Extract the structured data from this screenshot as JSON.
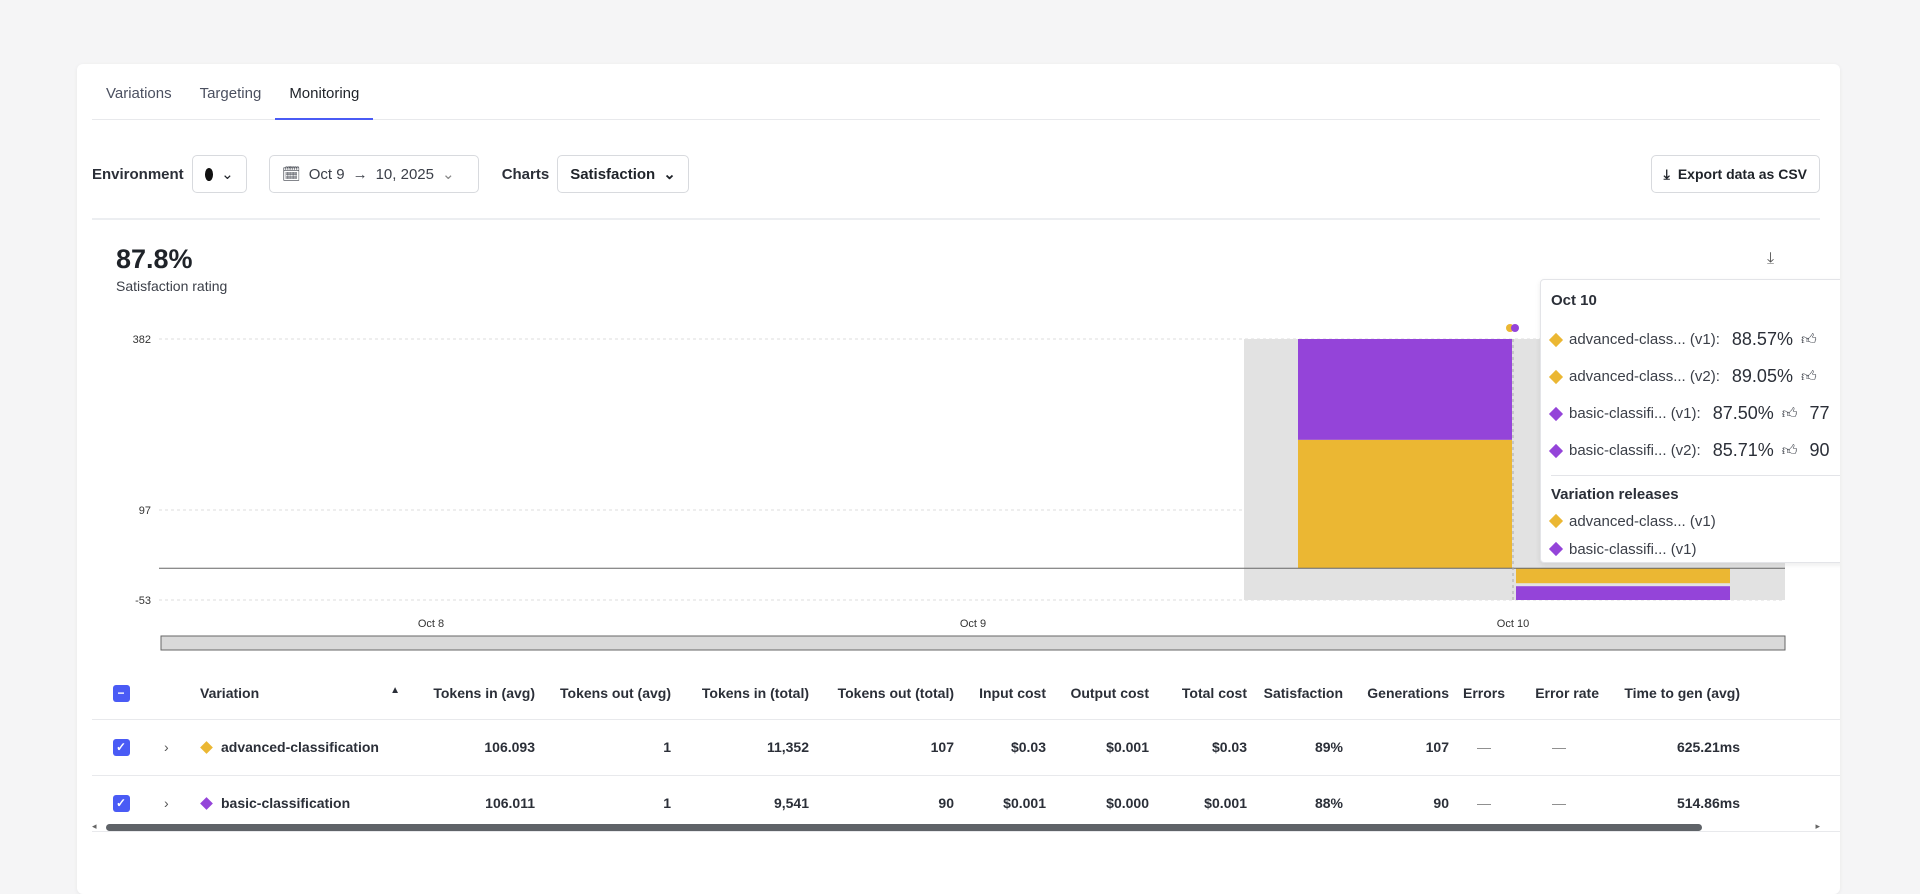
{
  "tabs": [
    "Variations",
    "Targeting",
    "Monitoring"
  ],
  "controls": {
    "environment_label": "Environment",
    "date_from": "Oct 9",
    "arrow": "→",
    "date_to": "10, 2025",
    "charts_label": "Charts",
    "charts_value": "Satisfaction",
    "export_label": "Export data as CSV"
  },
  "summary": {
    "value": "87.8%",
    "label": "Satisfaction rating"
  },
  "colors": {
    "advanced": "#ebb733",
    "basic": "#9444d9",
    "accent": "#4a5bf5"
  },
  "chart_data": {
    "type": "bar",
    "stacked": true,
    "yticks": [
      382,
      97,
      -53
    ],
    "ylim": [
      -53,
      382
    ],
    "xticks": [
      "Oct 8",
      "Oct 9",
      "Oct 10"
    ],
    "series": [
      {
        "name": "advanced-classification",
        "color": "#ebb733",
        "values": [
          {
            "x": "Oct 10",
            "pos": 214,
            "neg": -25
          }
        ]
      },
      {
        "name": "basic-classification",
        "color": "#9444d9",
        "values": [
          {
            "x": "Oct 10",
            "pos": 168,
            "neg": -28
          }
        ]
      }
    ]
  },
  "tooltip": {
    "title": "Oct 10",
    "rows": [
      {
        "label": "advanced-class... (v1):",
        "value": "88.57%",
        "extra": "",
        "color": "#ebb733"
      },
      {
        "label": "advanced-class... (v2):",
        "value": "89.05%",
        "extra": "",
        "color": "#ebb733"
      },
      {
        "label": "basic-classifi... (v1):",
        "value": "87.50%",
        "extra": "77",
        "color": "#9444d9"
      },
      {
        "label": "basic-classifi... (v2):",
        "value": "85.71%",
        "extra": "90",
        "color": "#9444d9"
      }
    ],
    "releases_title": "Variation releases",
    "releases": [
      {
        "label": "advanced-class... (v1)",
        "color": "#ebb733"
      },
      {
        "label": "basic-classifi... (v1)",
        "color": "#9444d9"
      }
    ]
  },
  "table": {
    "headers": [
      "Variation",
      "Tokens in (avg)",
      "Tokens out (avg)",
      "Tokens in (total)",
      "Tokens out (total)",
      "Input cost",
      "Output cost",
      "Total cost",
      "Satisfaction",
      "Generations",
      "Errors",
      "Error rate",
      "Time to gen (avg)",
      "Time to"
    ],
    "rows": [
      {
        "name": "advanced-classification",
        "color": "#ebb733",
        "cells": [
          "106.093",
          "1",
          "11,352",
          "107",
          "$0.03",
          "$0.001",
          "$0.03",
          "89%",
          "107",
          "—",
          "—",
          "625.21ms",
          ""
        ]
      },
      {
        "name": "basic-classification",
        "color": "#9444d9",
        "cells": [
          "106.011",
          "1",
          "9,541",
          "90",
          "$0.001",
          "$0.000",
          "$0.001",
          "88%",
          "90",
          "—",
          "—",
          "514.86ms",
          ""
        ]
      }
    ]
  }
}
